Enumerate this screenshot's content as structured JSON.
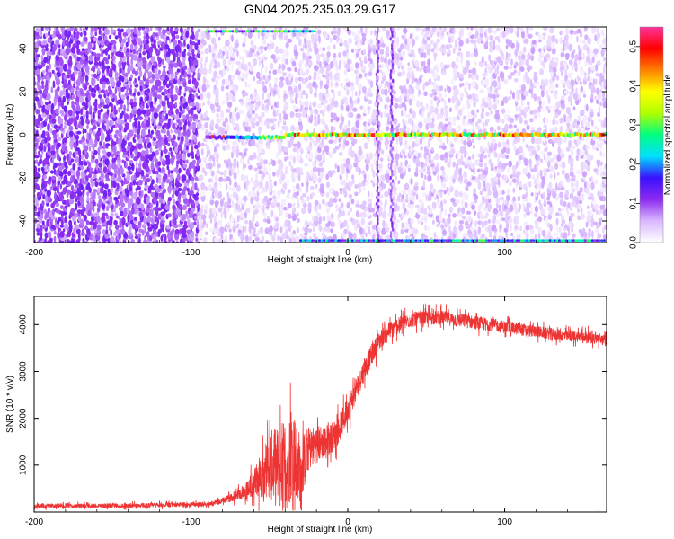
{
  "title": "GN04.2025.235.03.29.G17",
  "chart_data": [
    {
      "type": "heatmap",
      "xlabel": "Height of straight line (km)",
      "ylabel": "Frequency (Hz)",
      "xlim": [
        -200,
        165
      ],
      "ylim": [
        -50,
        50
      ],
      "xticks": [
        -200,
        -100,
        0,
        100
      ],
      "yticks": [
        -40,
        -20,
        0,
        20,
        40
      ],
      "colorbar": {
        "label": "Normalized spectral amplitude",
        "range": [
          0,
          0.55
        ],
        "ticks": [
          "0.0",
          "0.1",
          "0.2",
          "0.3",
          "0.4",
          "0.5"
        ],
        "colors": [
          "#ffffff",
          "#d9b8ff",
          "#8c2bf0",
          "#3a10ff",
          "#00e0ff",
          "#00ff80",
          "#b0ff00",
          "#ffff00",
          "#ff8000",
          "#ff0000",
          "#ff3399"
        ]
      },
      "features": {
        "carrier_line": {
          "frequency_hz": 0,
          "x_range": [
            -90,
            165
          ],
          "peak_amplitude": 0.5
        },
        "upper_edge_trace": {
          "frequency_hz": 48,
          "x_range": [
            -90,
            -20
          ]
        },
        "lower_edge_trace": {
          "frequency_hz": -49,
          "x_range": [
            -30,
            165
          ]
        },
        "noise_floor_left_of_km": -95,
        "vertical_artifacts_km": [
          19,
          28
        ]
      }
    },
    {
      "type": "line",
      "xlabel": "Height of straight line (km)",
      "ylabel": "SNR (10 * v/v)",
      "xlim": [
        -200,
        165
      ],
      "ylim": [
        0,
        4600
      ],
      "xticks": [
        -200,
        -100,
        0,
        100
      ],
      "yticks": [
        1000,
        2000,
        3000,
        4000
      ],
      "color": "#ee3333",
      "series": [
        {
          "x": [
            -200,
            -180,
            -160,
            -140,
            -120,
            -100,
            -90,
            -85,
            -80,
            -75,
            -70,
            -65,
            -60,
            -55,
            -50,
            -45,
            -40,
            -35,
            -30,
            -25,
            -20,
            -15,
            -10,
            -5,
            0,
            5,
            10,
            15,
            20,
            25,
            30,
            40,
            50,
            60,
            70,
            80,
            90,
            100,
            110,
            120,
            130,
            140,
            150,
            160,
            165
          ],
          "values": [
            120,
            130,
            140,
            140,
            150,
            160,
            170,
            190,
            240,
            300,
            380,
            450,
            600,
            800,
            1000,
            950,
            1000,
            1300,
            900,
            1350,
            1450,
            1500,
            1600,
            1800,
            2200,
            2600,
            3000,
            3350,
            3650,
            3850,
            3950,
            4100,
            4150,
            4150,
            4100,
            4050,
            4000,
            3950,
            3900,
            3850,
            3800,
            3750,
            3750,
            3700,
            3650
          ],
          "noise": [
            60,
            60,
            60,
            60,
            60,
            60,
            60,
            70,
            80,
            100,
            150,
            250,
            400,
            600,
            900,
            1100,
            1300,
            1200,
            900,
            600,
            500,
            450,
            400,
            380,
            350,
            330,
            300,
            280,
            260,
            240,
            230,
            200,
            190,
            190,
            190,
            180,
            180,
            170,
            170,
            160,
            160,
            150,
            150,
            150,
            150
          ]
        }
      ]
    }
  ]
}
